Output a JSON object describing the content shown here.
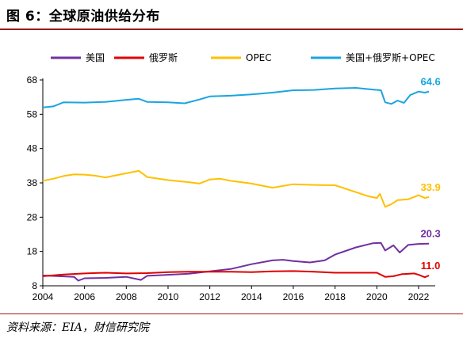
{
  "header": {
    "title": "图 6：全球原油供给分布"
  },
  "footer": {
    "source": "资料来源：EIA，财信研究院"
  },
  "chart_data": {
    "type": "line",
    "title": "图 6：全球原油供给分布",
    "xlabel": "",
    "ylabel": "",
    "x_ticks": [
      "2004",
      "2006",
      "2008",
      "2010",
      "2012",
      "2014",
      "2016",
      "2018",
      "2020",
      "2022"
    ],
    "y_ticks": [
      "68",
      "58",
      "48",
      "38",
      "28",
      "18",
      "8"
    ],
    "xlim": [
      2004,
      2022.8
    ],
    "ylim": [
      8,
      68
    ],
    "grid": false,
    "legend_position": "top",
    "series": [
      {
        "name": "美国",
        "color": "#7030a0",
        "end_label": "20.3",
        "points": [
          [
            2004.0,
            11.0
          ],
          [
            2004.8,
            10.8
          ],
          [
            2005.5,
            10.6
          ],
          [
            2005.7,
            9.5
          ],
          [
            2006.0,
            10.2
          ],
          [
            2007.0,
            10.3
          ],
          [
            2008.0,
            10.6
          ],
          [
            2008.7,
            9.7
          ],
          [
            2009.0,
            10.9
          ],
          [
            2010.0,
            11.2
          ],
          [
            2011.0,
            11.5
          ],
          [
            2012.0,
            12.2
          ],
          [
            2013.0,
            12.9
          ],
          [
            2014.0,
            14.3
          ],
          [
            2015.0,
            15.4
          ],
          [
            2015.5,
            15.6
          ],
          [
            2016.0,
            15.2
          ],
          [
            2016.8,
            14.8
          ],
          [
            2017.5,
            15.4
          ],
          [
            2018.0,
            17.1
          ],
          [
            2019.0,
            19.2
          ],
          [
            2019.8,
            20.4
          ],
          [
            2020.2,
            20.5
          ],
          [
            2020.4,
            18.3
          ],
          [
            2020.8,
            19.8
          ],
          [
            2021.1,
            17.7
          ],
          [
            2021.5,
            19.9
          ],
          [
            2022.0,
            20.2
          ],
          [
            2022.5,
            20.3
          ]
        ]
      },
      {
        "name": "俄罗斯",
        "color": "#e00000",
        "end_label": "11.0",
        "points": [
          [
            2004.0,
            10.8
          ],
          [
            2005.0,
            11.3
          ],
          [
            2006.0,
            11.6
          ],
          [
            2007.0,
            11.8
          ],
          [
            2008.0,
            11.6
          ],
          [
            2009.0,
            11.7
          ],
          [
            2010.0,
            12.0
          ],
          [
            2011.0,
            12.1
          ],
          [
            2012.0,
            12.1
          ],
          [
            2013.0,
            12.1
          ],
          [
            2014.0,
            12.0
          ],
          [
            2015.0,
            12.2
          ],
          [
            2016.0,
            12.3
          ],
          [
            2017.0,
            12.1
          ],
          [
            2018.0,
            11.8
          ],
          [
            2019.0,
            11.8
          ],
          [
            2020.0,
            11.8
          ],
          [
            2020.4,
            10.6
          ],
          [
            2020.8,
            10.8
          ],
          [
            2021.2,
            11.4
          ],
          [
            2021.8,
            11.6
          ],
          [
            2022.0,
            11.2
          ],
          [
            2022.3,
            10.5
          ],
          [
            2022.5,
            11.0
          ]
        ]
      },
      {
        "name": "OPEC",
        "color": "#ffc000",
        "end_label": "33.9",
        "points": [
          [
            2004.0,
            38.6
          ],
          [
            2004.5,
            39.2
          ],
          [
            2005.0,
            40.0
          ],
          [
            2005.5,
            40.5
          ],
          [
            2006.0,
            40.4
          ],
          [
            2006.5,
            40.1
          ],
          [
            2007.0,
            39.6
          ],
          [
            2007.5,
            40.2
          ],
          [
            2008.0,
            40.8
          ],
          [
            2008.6,
            41.5
          ],
          [
            2009.0,
            39.7
          ],
          [
            2010.0,
            38.8
          ],
          [
            2011.0,
            38.2
          ],
          [
            2011.5,
            37.8
          ],
          [
            2012.0,
            39.0
          ],
          [
            2012.5,
            39.2
          ],
          [
            2013.0,
            38.6
          ],
          [
            2014.0,
            37.8
          ],
          [
            2015.0,
            36.6
          ],
          [
            2016.0,
            37.6
          ],
          [
            2017.0,
            37.4
          ],
          [
            2018.0,
            37.3
          ],
          [
            2019.0,
            35.3
          ],
          [
            2019.6,
            34.1
          ],
          [
            2020.0,
            33.6
          ],
          [
            2020.15,
            34.8
          ],
          [
            2020.4,
            31.0
          ],
          [
            2020.7,
            31.8
          ],
          [
            2021.0,
            33.0
          ],
          [
            2021.5,
            33.2
          ],
          [
            2022.0,
            34.4
          ],
          [
            2022.3,
            33.6
          ],
          [
            2022.5,
            33.9
          ]
        ]
      },
      {
        "name": "美国+俄罗斯+OPEC",
        "color": "#1aa5e0",
        "end_label": "64.6",
        "points": [
          [
            2004.0,
            60.0
          ],
          [
            2004.5,
            60.3
          ],
          [
            2005.0,
            61.5
          ],
          [
            2006.0,
            61.4
          ],
          [
            2007.0,
            61.6
          ],
          [
            2008.0,
            62.2
          ],
          [
            2008.6,
            62.5
          ],
          [
            2009.0,
            61.6
          ],
          [
            2010.0,
            61.5
          ],
          [
            2010.8,
            61.2
          ],
          [
            2011.5,
            62.3
          ],
          [
            2012.0,
            63.2
          ],
          [
            2013.0,
            63.4
          ],
          [
            2014.0,
            63.8
          ],
          [
            2015.0,
            64.3
          ],
          [
            2016.0,
            65.0
          ],
          [
            2017.0,
            65.1
          ],
          [
            2018.0,
            65.5
          ],
          [
            2019.0,
            65.7
          ],
          [
            2019.8,
            65.2
          ],
          [
            2020.2,
            65.0
          ],
          [
            2020.4,
            61.5
          ],
          [
            2020.7,
            61.0
          ],
          [
            2021.0,
            62.0
          ],
          [
            2021.3,
            61.3
          ],
          [
            2021.6,
            63.6
          ],
          [
            2022.0,
            64.6
          ],
          [
            2022.3,
            64.3
          ],
          [
            2022.5,
            64.6
          ]
        ]
      }
    ]
  }
}
